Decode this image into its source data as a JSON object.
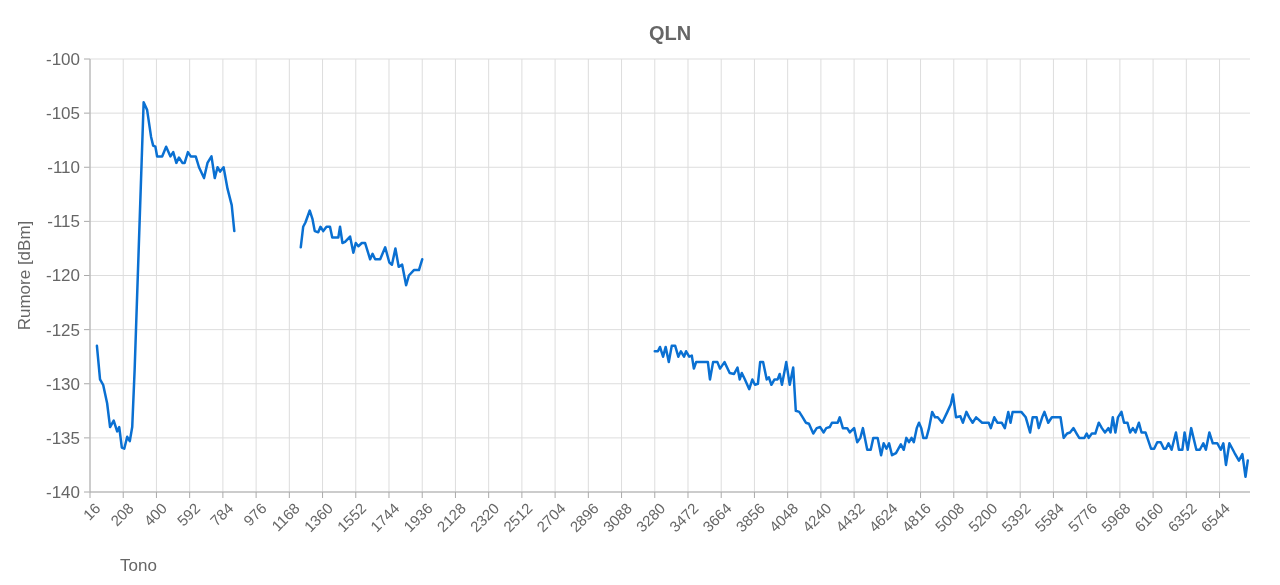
{
  "chart_data": {
    "type": "line",
    "title": "QLN",
    "xlabel": "Tono",
    "ylabel": "Rumore [dBm]",
    "xlim": [
      16,
      6720
    ],
    "ylim": [
      -140,
      -100
    ],
    "xticks": [
      16,
      208,
      400,
      592,
      784,
      976,
      1168,
      1360,
      1552,
      1744,
      1936,
      2128,
      2320,
      2512,
      2704,
      2896,
      3088,
      3280,
      3472,
      3664,
      3856,
      4048,
      4240,
      4432,
      4624,
      4816,
      5008,
      5200,
      5392,
      5584,
      5776,
      5968,
      6160,
      6352,
      6544
    ],
    "yticks": [
      -140,
      -135,
      -130,
      -125,
      -120,
      -115,
      -110,
      -105,
      -100
    ],
    "grid": true,
    "marker": "none",
    "line_style": "solid",
    "series": [
      {
        "color": "#0a70d2",
        "x": [
          56,
          74,
          92,
          115,
          132,
          153,
          173,
          185,
          200,
          214,
          231,
          246,
          260,
          274,
          326,
          346,
          369,
          381,
          394,
          404,
          433,
          456,
          481,
          497,
          515,
          530,
          550,
          563,
          582,
          598,
          627,
          646,
          675,
          695,
          718,
          737,
          753,
          768,
          788,
          811,
          835,
          850,
          1000,
          1234,
          1248,
          1261,
          1286,
          1302,
          1315,
          1335,
          1348,
          1364,
          1383,
          1403,
          1416,
          1451,
          1461,
          1475,
          1490,
          1519,
          1538,
          1552,
          1567,
          1587,
          1606,
          1635,
          1649,
          1664,
          1693,
          1722,
          1746,
          1761,
          1781,
          1800,
          1820,
          1843,
          1859,
          1888,
          1917,
          1936,
          2500,
          3280,
          3298,
          3310,
          3328,
          3343,
          3361,
          3378,
          3398,
          3416,
          3431,
          3449,
          3461,
          3479,
          3494,
          3506,
          3519,
          3587,
          3599,
          3617,
          3642,
          3657,
          3683,
          3713,
          3738,
          3758,
          3771,
          3783,
          3801,
          3826,
          3844,
          3859,
          3876,
          3889,
          3906,
          3927,
          3939,
          3954,
          3972,
          3990,
          4002,
          4015,
          4040,
          4060,
          4080,
          4095,
          4115,
          4135,
          4153,
          4171,
          4196,
          4216,
          4236,
          4256,
          4271,
          4291,
          4304,
          4337,
          4349,
          4367,
          4392,
          4407,
          4432,
          4450,
          4468,
          4483,
          4508,
          4528,
          4543,
          4568,
          4588,
          4603,
          4619,
          4634,
          4651,
          4674,
          4702,
          4719,
          4734,
          4749,
          4764,
          4777,
          4794,
          4807,
          4820,
          4832,
          4850,
          4865,
          4883,
          4900,
          4915,
          4941,
          4971,
          4991,
          5003,
          5021,
          5046,
          5061,
          5081,
          5097,
          5117,
          5137,
          5172,
          5210,
          5222,
          5242,
          5260,
          5285,
          5303,
          5323,
          5336,
          5348,
          5398,
          5424,
          5449,
          5464,
          5487,
          5499,
          5519,
          5532,
          5554,
          5575,
          5625,
          5643,
          5663,
          5680,
          5700,
          5718,
          5733,
          5763,
          5776,
          5788,
          5806,
          5826,
          5846,
          5864,
          5882,
          5902,
          5914,
          5927,
          5942,
          5957,
          5977,
          5992,
          6012,
          6027,
          6043,
          6058,
          6078,
          6093,
          6116,
          6148,
          6166,
          6184,
          6204,
          6222,
          6234,
          6249,
          6267,
          6292,
          6309,
          6329,
          6342,
          6360,
          6380,
          6410,
          6430,
          6450,
          6465,
          6485,
          6505,
          6531,
          6551,
          6566,
          6581,
          6601,
          6631,
          6656,
          6676,
          6694,
          6707
        ],
        "values": [
          -126.5,
          -129.6,
          -130.1,
          -131.8,
          -134.0,
          -133.4,
          -134.4,
          -134.0,
          -135.9,
          -136.0,
          -134.9,
          -135.3,
          -134.0,
          -128.7,
          -104.0,
          -104.7,
          -107.2,
          -108.0,
          -108.1,
          -109.0,
          -109.0,
          -108.1,
          -109.0,
          -108.6,
          -109.6,
          -109.1,
          -109.6,
          -109.6,
          -108.6,
          -109.0,
          -109.0,
          -110.0,
          -111.0,
          -109.6,
          -109.0,
          -111.0,
          -110.0,
          -110.4,
          -110.0,
          -112.0,
          -113.5,
          -115.9,
          null,
          -117.4,
          -115.5,
          -115.1,
          -114.0,
          -114.8,
          -115.9,
          -116.0,
          -115.5,
          -115.9,
          -115.5,
          -115.5,
          -116.5,
          -116.5,
          -115.5,
          -117.0,
          -116.9,
          -116.4,
          -117.9,
          -117.0,
          -117.3,
          -117.0,
          -117.0,
          -118.5,
          -118.0,
          -118.5,
          -118.5,
          -117.4,
          -118.8,
          -119.0,
          -117.5,
          -119.2,
          -119.0,
          -120.9,
          -120.0,
          -119.5,
          -119.5,
          -118.5,
          null,
          -127.0,
          -127.0,
          -126.6,
          -127.5,
          -126.6,
          -128.0,
          -126.5,
          -126.5,
          -127.5,
          -127.0,
          -127.5,
          -127.0,
          -127.5,
          -127.4,
          -128.6,
          -128.0,
          -128.0,
          -129.6,
          -128.0,
          -128.0,
          -128.6,
          -128.0,
          -129.0,
          -129.1,
          -128.5,
          -129.6,
          -129.0,
          -129.6,
          -130.5,
          -129.6,
          -130.1,
          -130.0,
          -128.0,
          -128.0,
          -129.6,
          -129.4,
          -130.1,
          -129.6,
          -129.6,
          -129.1,
          -130.1,
          -128.0,
          -130.1,
          -128.5,
          -132.5,
          -132.6,
          -133.1,
          -133.6,
          -133.7,
          -134.6,
          -134.1,
          -134.0,
          -134.5,
          -134.1,
          -134.0,
          -133.6,
          -133.6,
          -133.1,
          -134.1,
          -134.1,
          -134.5,
          -134.1,
          -135.4,
          -135.0,
          -134.1,
          -136.1,
          -136.1,
          -135.0,
          -135.0,
          -136.6,
          -135.5,
          -136.0,
          -135.5,
          -136.6,
          -136.4,
          -135.6,
          -136.1,
          -135.0,
          -135.4,
          -135.0,
          -135.4,
          -134.1,
          -133.6,
          -134.1,
          -135.0,
          -135.0,
          -134.1,
          -132.6,
          -133.1,
          -133.1,
          -133.6,
          -132.6,
          -131.9,
          -131.0,
          -133.1,
          -133.0,
          -133.6,
          -132.6,
          -133.1,
          -133.6,
          -133.1,
          -133.6,
          -133.6,
          -134.1,
          -133.1,
          -133.6,
          -133.6,
          -134.1,
          -132.6,
          -133.6,
          -132.6,
          -132.6,
          -133.1,
          -134.5,
          -133.1,
          -133.1,
          -134.1,
          -133.1,
          -132.6,
          -133.6,
          -133.1,
          -133.1,
          -135.0,
          -134.6,
          -134.5,
          -134.1,
          -134.6,
          -135.0,
          -135.0,
          -134.6,
          -135.0,
          -134.6,
          -134.6,
          -133.6,
          -134.1,
          -134.5,
          -134.1,
          -134.5,
          -133.1,
          -134.5,
          -133.1,
          -132.6,
          -133.6,
          -133.6,
          -134.5,
          -134.1,
          -134.5,
          -133.6,
          -134.5,
          -134.5,
          -136.0,
          -136.0,
          -135.4,
          -135.4,
          -136.0,
          -136.0,
          -135.5,
          -136.1,
          -134.5,
          -136.1,
          -136.1,
          -134.5,
          -136.1,
          -134.1,
          -136.1,
          -136.1,
          -135.5,
          -136.1,
          -134.5,
          -135.5,
          -135.5,
          -136.1,
          -135.5,
          -137.5,
          -135.5,
          -136.4,
          -137.1,
          -136.5,
          -138.6,
          -137.1
        ]
      }
    ]
  }
}
